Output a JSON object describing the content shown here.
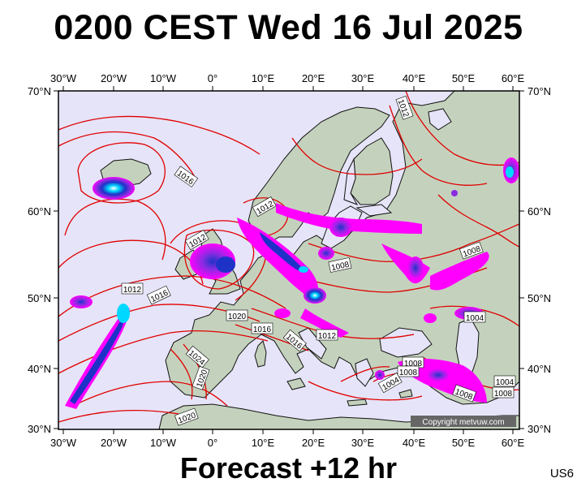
{
  "title": "0200 CEST Wed 16 Jul 2025",
  "forecast_label": "Forecast +12 hr",
  "product_code": "US6",
  "copyright": "Copyright metvuw.com",
  "map": {
    "lon_ticks": [
      "30°W",
      "20°W",
      "10°W",
      "0°",
      "10°E",
      "20°E",
      "30°E",
      "40°E",
      "50°E",
      "60°E"
    ],
    "lat_ticks": [
      "70°N",
      "60°N",
      "50°N",
      "40°N",
      "30°N"
    ],
    "isobar_labels": [
      {
        "id": "1012-n",
        "text": "1012"
      },
      {
        "id": "1016-iceland",
        "text": "1016"
      },
      {
        "id": "1012-scand",
        "text": "1012"
      },
      {
        "id": "1012-uk",
        "text": "1012"
      },
      {
        "id": "1008-baltic",
        "text": "1008"
      },
      {
        "id": "1008-russia",
        "text": "1008"
      },
      {
        "id": "1012-atl",
        "text": "1012"
      },
      {
        "id": "1016-atl",
        "text": "1016"
      },
      {
        "id": "1020-fr",
        "text": "1020"
      },
      {
        "id": "1016-it",
        "text": "1016"
      },
      {
        "id": "1016-adr",
        "text": "1016"
      },
      {
        "id": "1012-balk",
        "text": "1012"
      },
      {
        "id": "1004-casp",
        "text": "1004"
      },
      {
        "id": "1024-iber",
        "text": "1024"
      },
      {
        "id": "1020-iber",
        "text": "1020"
      },
      {
        "id": "1008-tr1",
        "text": "1008"
      },
      {
        "id": "1008-tr2",
        "text": "1008"
      },
      {
        "id": "1004-tr",
        "text": "1004"
      },
      {
        "id": "1004-iran",
        "text": "1004"
      },
      {
        "id": "1008-iran",
        "text": "1008"
      },
      {
        "id": "1008-iran2",
        "text": "1008"
      },
      {
        "id": "1020-afr",
        "text": "1020"
      }
    ]
  },
  "colors": {
    "sea": "#e6e4f8",
    "land": "#c4d2bd",
    "isobar": "#e00000",
    "precip_light": "#ff00ff",
    "precip_mid": "#8a2be2",
    "precip_heavy": "#1e32c8",
    "precip_core": "#00d8ff"
  }
}
